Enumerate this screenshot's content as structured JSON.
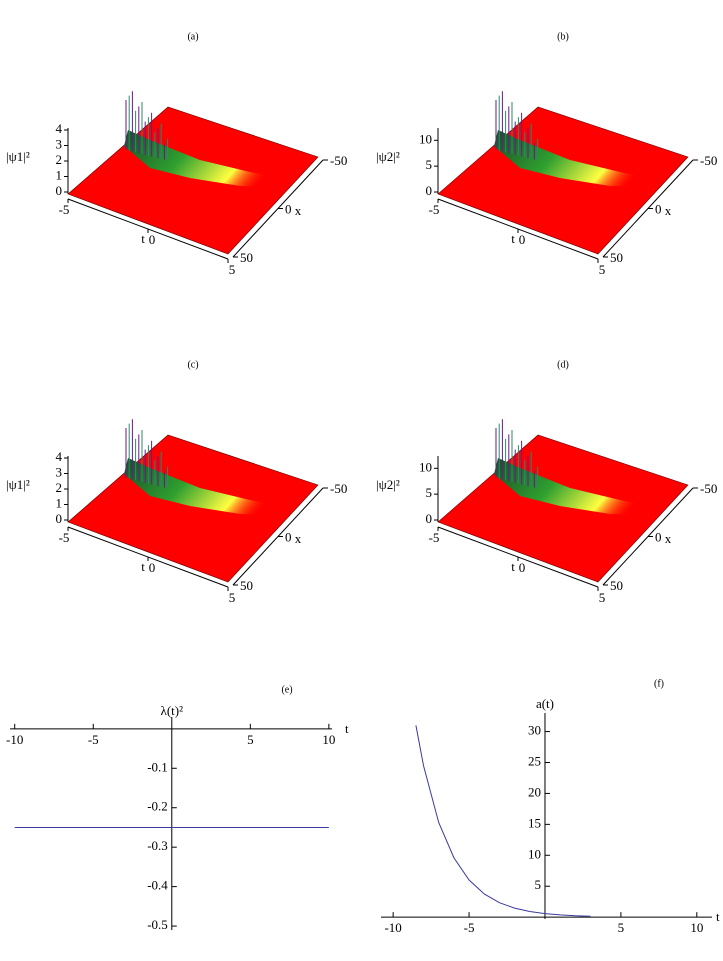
{
  "chart_data": [
    {
      "type": "surface3d",
      "label": "(a)",
      "zlabel": "|ψ1|²",
      "tlabel": "t",
      "xlabel": "x",
      "zlim": [
        0,
        4
      ],
      "zticks": [
        0,
        1,
        2,
        3,
        4
      ],
      "tlim": [
        -5,
        5
      ],
      "tticks": [
        -5,
        0,
        5
      ],
      "xlim": [
        -50,
        50
      ],
      "xticks": [
        -50,
        0,
        50
      ]
    },
    {
      "type": "surface3d",
      "label": "(b)",
      "zlabel": "|ψ2|²",
      "tlabel": "t",
      "xlabel": "x",
      "zlim": [
        0,
        12
      ],
      "zticks": [
        0,
        5,
        10
      ],
      "tlim": [
        -5,
        5
      ],
      "tticks": [
        -5,
        0,
        5
      ],
      "xlim": [
        -50,
        50
      ],
      "xticks": [
        -50,
        0,
        50
      ]
    },
    {
      "type": "surface3d",
      "label": "(c)",
      "zlabel": "|ψ1|²",
      "tlabel": "t",
      "xlabel": "x",
      "zlim": [
        0,
        4
      ],
      "zticks": [
        0,
        1,
        2,
        3,
        4
      ],
      "tlim": [
        -5,
        5
      ],
      "tticks": [
        -5,
        0,
        5
      ],
      "xlim": [
        -50,
        50
      ],
      "xticks": [
        -50,
        0,
        50
      ]
    },
    {
      "type": "surface3d",
      "label": "(d)",
      "zlabel": "|ψ2|²",
      "tlabel": "t",
      "xlabel": "x",
      "zlim": [
        0,
        12
      ],
      "zticks": [
        0,
        5,
        10
      ],
      "tlim": [
        -5,
        5
      ],
      "tticks": [
        -5,
        0,
        5
      ],
      "xlim": [
        -50,
        50
      ],
      "xticks": [
        -50,
        0,
        50
      ]
    },
    {
      "type": "line",
      "label": "(e)",
      "ylabel": "λ(t)²",
      "xlabel": "t",
      "x": [
        -10,
        10
      ],
      "values": [
        -0.25,
        -0.25
      ],
      "color": "#3a3aa0",
      "xlim": [
        -10.3,
        10.2
      ],
      "xticks": [
        -10,
        -5,
        5,
        10
      ],
      "ylim": [
        -0.51,
        0.03
      ],
      "yticks": [
        -0.1,
        -0.2,
        -0.3,
        -0.4,
        -0.5
      ]
    },
    {
      "type": "line",
      "label": "(f)",
      "ylabel": "a(t)",
      "xlabel": "t",
      "x": [
        -8.5,
        -8,
        -7,
        -6,
        -5,
        -4,
        -3,
        -2,
        -1,
        0,
        1,
        2,
        3
      ],
      "values": [
        31,
        24.5,
        15.3,
        9.6,
        6.0,
        3.75,
        2.34,
        1.46,
        0.91,
        0.57,
        0.36,
        0.22,
        0.14
      ],
      "color": "#3a3aa0",
      "xlim": [
        -10.8,
        11
      ],
      "xticks": [
        -10,
        -5,
        5,
        10
      ],
      "ylim": [
        -0.3,
        33
      ],
      "yticks": [
        5,
        10,
        15,
        20,
        25,
        30
      ]
    }
  ]
}
